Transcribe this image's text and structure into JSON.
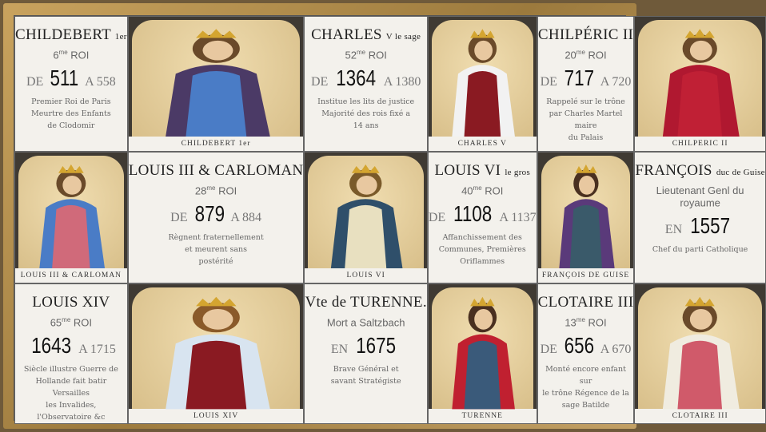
{
  "cells": [
    {
      "type": "text",
      "title": "CHILDEBERT",
      "title_suffix": "1er",
      "rank": "6",
      "rank_suffix": "me",
      "rank_label": "ROI",
      "prefix": "DE",
      "year_start": "511",
      "sep": "A",
      "year_end": "558",
      "desc": [
        "Premier Roi de Paris",
        "Meurtre des Enfants",
        "de Clodomir"
      ]
    },
    {
      "type": "image",
      "caption": "CHILDEBERT 1er",
      "robe": "#4a7cc6",
      "cloak": "#4b3a66",
      "hair": "#6a4a2a"
    },
    {
      "type": "text",
      "title": "CHARLES",
      "title_suffix": "V le sage",
      "rank": "52",
      "rank_suffix": "me",
      "rank_label": "ROI",
      "prefix": "DE",
      "year_start": "1364",
      "sep": "A",
      "year_end": "1380",
      "desc": [
        "Institue les lits de justice",
        "Majorité des rois fixé a",
        "14 ans"
      ]
    },
    {
      "type": "image",
      "caption": "CHARLES V",
      "robe": "#8a1a22",
      "cloak": "#f2f2f2",
      "hair": "#6a4a2a"
    },
    {
      "type": "text",
      "title": "CHILPÉRIC II",
      "title_suffix": "",
      "rank": "20",
      "rank_suffix": "me",
      "rank_label": "ROI",
      "prefix": "DE",
      "year_start": "717",
      "sep": "A",
      "year_end": "720",
      "desc": [
        "Rappelé sur le trône",
        "par Charles Martel maire",
        "du Palais"
      ]
    },
    {
      "type": "image",
      "caption": "CHILPERIC II",
      "robe": "#c02035",
      "cloak": "#b01830",
      "hair": "#6a4a2a"
    },
    {
      "type": "image",
      "caption": "LOUIS III & CARLOMAN",
      "robe": "#d06a7a",
      "cloak": "#4a7cc6",
      "hair": "#6a4a2a"
    },
    {
      "type": "text",
      "title": "LOUIS III & CARLOMAN",
      "title_suffix": "",
      "rank": "28",
      "rank_suffix": "me",
      "rank_label": "ROI",
      "prefix": "DE",
      "year_start": "879",
      "sep": "A",
      "year_end": "884",
      "desc": [
        "Règnent fraternellement",
        "et meurent sans",
        "postérité"
      ]
    },
    {
      "type": "image",
      "caption": "LOUIS VI",
      "robe": "#e8e0c0",
      "cloak": "#2f4f6a",
      "hair": "#7a5a2a"
    },
    {
      "type": "text",
      "title": "LOUIS VI",
      "title_suffix": "le gros",
      "rank": "40",
      "rank_suffix": "me",
      "rank_label": "ROI",
      "prefix": "DE",
      "year_start": "1108",
      "sep": "A",
      "year_end": "1137",
      "desc": [
        "Affanchissement des",
        "Communes, Premières",
        "Oriflammes"
      ]
    },
    {
      "type": "image",
      "caption": "FRANÇOIS DE GUISE",
      "robe": "#3a5a6a",
      "cloak": "#5a3a7a",
      "hair": "#4a3020"
    },
    {
      "type": "text",
      "title": "FRANÇOIS",
      "title_suffix": "duc de Guise",
      "rank": "Lieutenant Genl du royaume",
      "rank_suffix": "",
      "rank_label": "",
      "prefix": "EN",
      "year_start": "1557",
      "sep": "",
      "year_end": "",
      "desc": [
        "Chef du parti Catholique"
      ]
    },
    {
      "type": "text",
      "title": "LOUIS XIV",
      "title_suffix": "",
      "rank": "65",
      "rank_suffix": "me",
      "rank_label": "ROI",
      "prefix": "",
      "year_start": "1643",
      "sep": "A",
      "year_end": "1715",
      "desc": [
        "Siècle illustre Guerre de",
        "Hollande fait batir Versailles",
        "les Invalides, l'Observatoire &c"
      ]
    },
    {
      "type": "image",
      "caption": "LOUIS XIV",
      "robe": "#8a1a22",
      "cloak": "#d8e4f0",
      "hair": "#8a5a2a"
    },
    {
      "type": "text",
      "title": "Vte de TURENNE.",
      "title_suffix": "",
      "rank": "Mort a Saltzbach",
      "rank_suffix": "",
      "rank_label": "",
      "prefix": "EN",
      "year_start": "1675",
      "sep": "",
      "year_end": "",
      "desc": [
        "Brave Général et",
        "savant Stratégiste"
      ]
    },
    {
      "type": "image",
      "caption": "TURENNE",
      "robe": "#3a5a7a",
      "cloak": "#c02030",
      "hair": "#4a3020"
    },
    {
      "type": "text",
      "title": "CLOTAIRE III",
      "title_suffix": "",
      "rank": "13",
      "rank_suffix": "me",
      "rank_label": "ROI",
      "prefix": "DE",
      "year_start": "656",
      "sep": "A",
      "year_end": "670",
      "desc": [
        "Monté encore enfant sur",
        "le trône Régence de la",
        "sage Batilde"
      ]
    },
    {
      "type": "image",
      "caption": "CLOTAIRE III",
      "robe": "#d05a6a",
      "cloak": "#f0ece0",
      "hair": "#6a4a2a"
    }
  ]
}
